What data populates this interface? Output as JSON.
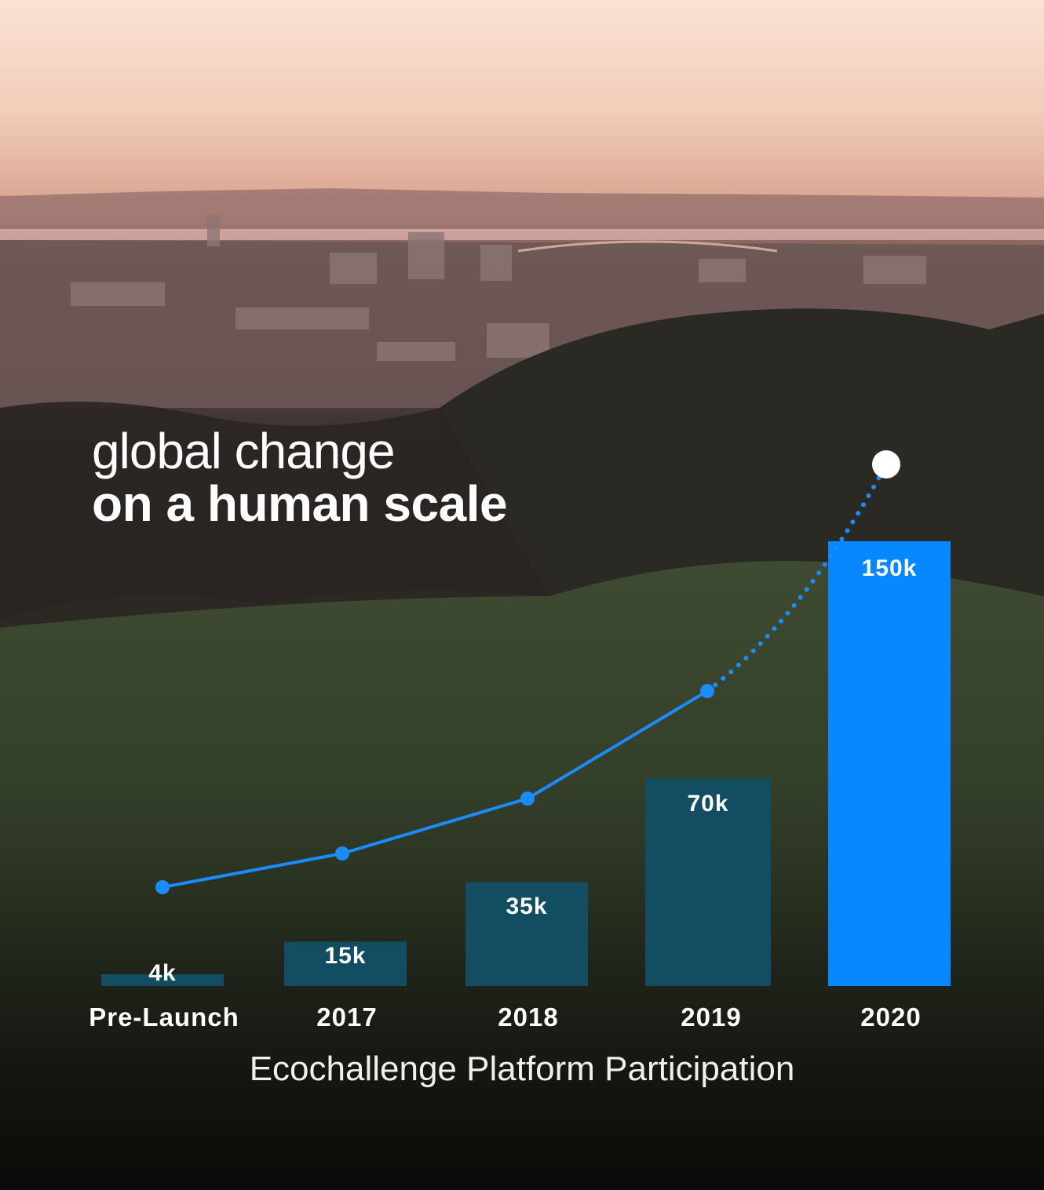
{
  "headline": {
    "line1": "global change",
    "line2": "on a human scale"
  },
  "caption": "Ecochallenge Platform Participation",
  "colors": {
    "bar": "#134d61",
    "bar_highlight": "#0788ff",
    "line": "#1a8cff",
    "projection_marker": "#ffffff",
    "text": "#ffffff"
  },
  "chart_data": {
    "type": "bar",
    "categories": [
      "Pre-Launch",
      "2017",
      "2018",
      "2019",
      "2020"
    ],
    "values": [
      4,
      15,
      35,
      70,
      150
    ],
    "value_labels": [
      "4k",
      "15k",
      "35k",
      "70k",
      "150k"
    ],
    "unit": "k",
    "highlight_index": 4,
    "trend_line": {
      "style": "solid then dotted",
      "values": [
        4,
        15,
        35,
        70,
        150
      ],
      "dotted_from_index": 3,
      "end_marker": "white circle above last bar"
    },
    "title": "",
    "xlabel": "Ecochallenge Platform Participation",
    "ylabel": "",
    "ylim": [
      0,
      150
    ],
    "grid": false,
    "legend": "none"
  }
}
